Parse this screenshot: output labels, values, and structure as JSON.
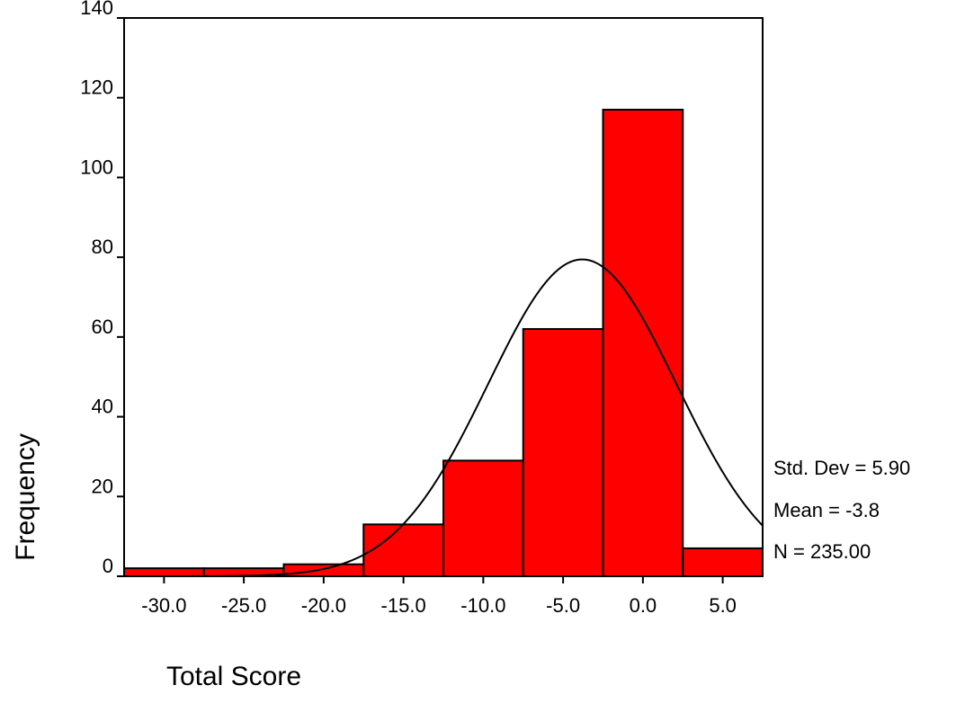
{
  "chart_data": {
    "type": "bar",
    "subtype": "histogram",
    "title": "",
    "xlabel": "Total Score",
    "ylabel": "Frequency",
    "bin_width": 5,
    "bins": [
      {
        "center": -30,
        "value": 2
      },
      {
        "center": -25,
        "value": 2
      },
      {
        "center": -20,
        "value": 3
      },
      {
        "center": -15,
        "value": 13
      },
      {
        "center": -10,
        "value": 29
      },
      {
        "center": -5,
        "value": 62
      },
      {
        "center": 0,
        "value": 117
      },
      {
        "center": 5,
        "value": 7
      }
    ],
    "x_ticks": [
      -30,
      -25,
      -20,
      -15,
      -10,
      -5,
      0,
      5
    ],
    "x_tick_labels": [
      "-30.0",
      "-25.0",
      "-20.0",
      "-15.0",
      "-10.0",
      "-5.0",
      "0.0",
      "5.0"
    ],
    "y_ticks": [
      0,
      20,
      40,
      60,
      80,
      100,
      120,
      140
    ],
    "y_tick_labels": [
      "0",
      "20",
      "40",
      "60",
      "80",
      "100",
      "120",
      "140"
    ],
    "xlim": [
      -32.5,
      7.5
    ],
    "ylim": [
      0,
      140
    ],
    "normal_curve": {
      "mean": -3.8,
      "std_dev": 5.9,
      "n": 235
    },
    "stats": {
      "std_dev": "Std. Dev = 5.90",
      "mean": "Mean = -3.8",
      "n": "N = 235.00"
    },
    "grid": false,
    "colors": {
      "bar_fill": "#ff0000",
      "bar_stroke": "#000000",
      "curve": "#000000",
      "axis": "#000000"
    }
  }
}
